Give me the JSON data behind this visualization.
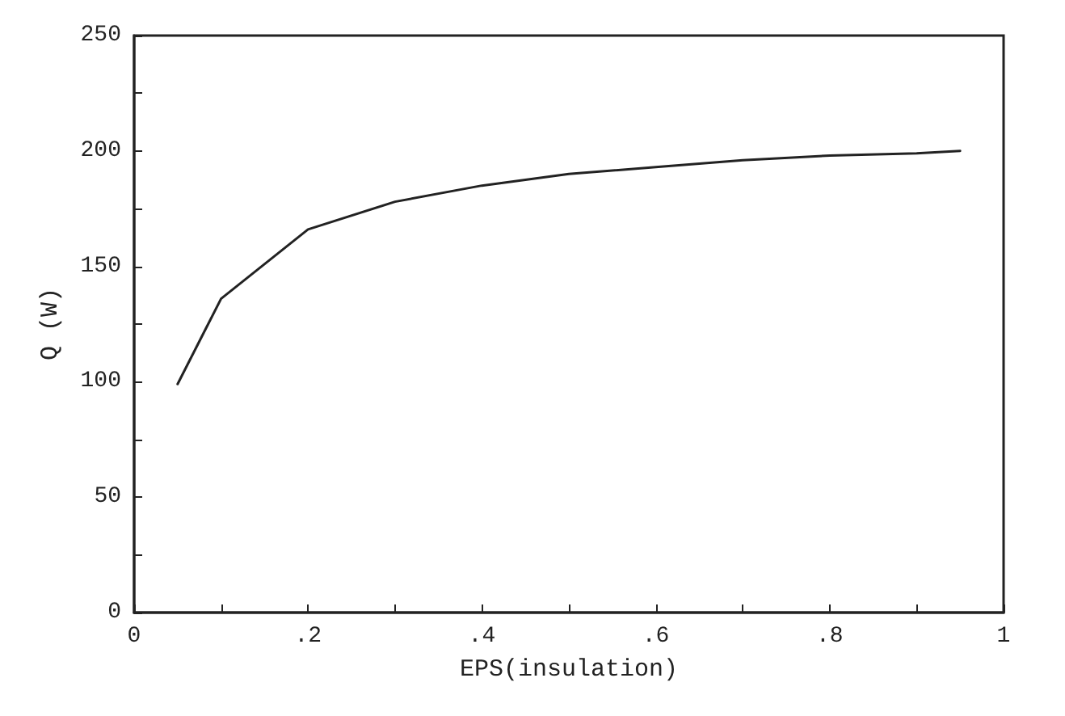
{
  "chart_data": {
    "type": "line",
    "xlabel": "EPS(insulation)",
    "ylabel": "Q (W)",
    "x": [
      0.05,
      0.1,
      0.2,
      0.3,
      0.4,
      0.5,
      0.6,
      0.7,
      0.8,
      0.9,
      0.95
    ],
    "series": [
      {
        "color": "#222222",
        "values": [
          99,
          136,
          166,
          178,
          185,
          190,
          193,
          196,
          198,
          199,
          200
        ]
      }
    ],
    "xlim": [
      0,
      1
    ],
    "xticks": [
      {
        "value": 0,
        "label": "0"
      },
      {
        "value": 0.1,
        "label": null
      },
      {
        "value": 0.2,
        "label": ".2"
      },
      {
        "value": 0.3,
        "label": null
      },
      {
        "value": 0.4,
        "label": ".4"
      },
      {
        "value": 0.5,
        "label": null
      },
      {
        "value": 0.6,
        "label": ".6"
      },
      {
        "value": 0.7,
        "label": null
      },
      {
        "value": 0.8,
        "label": ".8"
      },
      {
        "value": 0.9,
        "label": null
      },
      {
        "value": 1,
        "label": "1"
      }
    ],
    "ylim": [
      0,
      250
    ],
    "yticks": [
      0,
      {
        "value": 25,
        "label": null
      },
      50,
      {
        "value": 75,
        "label": null
      },
      100,
      {
        "value": 125,
        "label": null
      },
      150,
      {
        "value": 175,
        "label": null
      },
      200,
      {
        "value": 225,
        "label": null
      },
      250
    ],
    "grid": false,
    "marker": "none",
    "line_style": "solid"
  }
}
